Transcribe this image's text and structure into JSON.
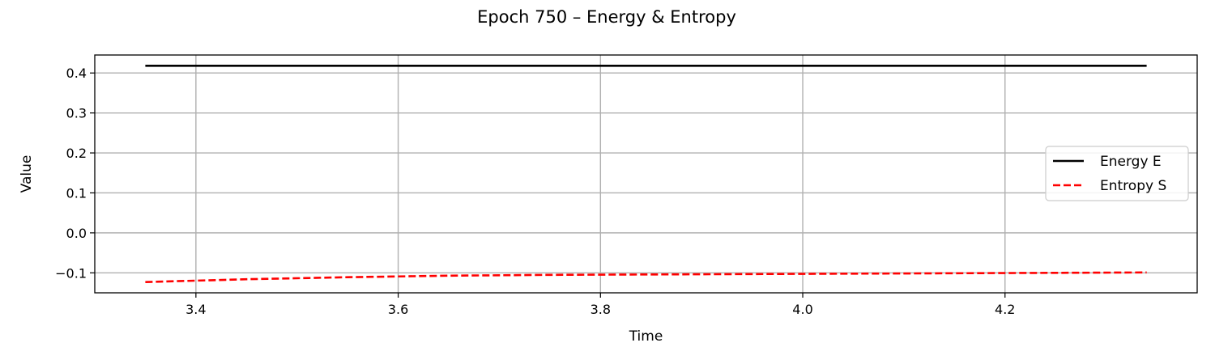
{
  "chart_data": {
    "type": "line",
    "title": "Epoch 750 – Energy & Entropy",
    "xlabel": "Time",
    "ylabel": "Value",
    "xlim": [
      3.3,
      4.39
    ],
    "ylim": [
      -0.15,
      0.445
    ],
    "xticks": [
      3.4,
      3.6,
      3.8,
      4.0,
      4.2
    ],
    "xtick_labels": [
      "3.4",
      "3.6",
      "3.8",
      "4.0",
      "4.2"
    ],
    "yticks": [
      -0.1,
      0.0,
      0.1,
      0.2,
      0.3,
      0.4
    ],
    "ytick_labels": [
      "−0.1",
      "0.0",
      "0.1",
      "0.2",
      "0.3",
      "0.4"
    ],
    "grid": true,
    "legend_position": "center-right",
    "series": [
      {
        "name": "Energy E",
        "color": "#000000",
        "style": "solid",
        "x": [
          3.35,
          3.5,
          3.7,
          3.9,
          4.1,
          4.34
        ],
        "y": [
          0.418,
          0.418,
          0.418,
          0.418,
          0.418,
          0.418
        ]
      },
      {
        "name": "Entropy S",
        "color": "#ff0000",
        "style": "dashed",
        "x": [
          3.35,
          3.45,
          3.55,
          3.65,
          3.75,
          3.85,
          3.95,
          4.05,
          4.15,
          4.25,
          4.34
        ],
        "y": [
          -0.123,
          -0.116,
          -0.111,
          -0.107,
          -0.105,
          -0.104,
          -0.103,
          -0.102,
          -0.101,
          -0.1,
          -0.099
        ]
      }
    ]
  }
}
